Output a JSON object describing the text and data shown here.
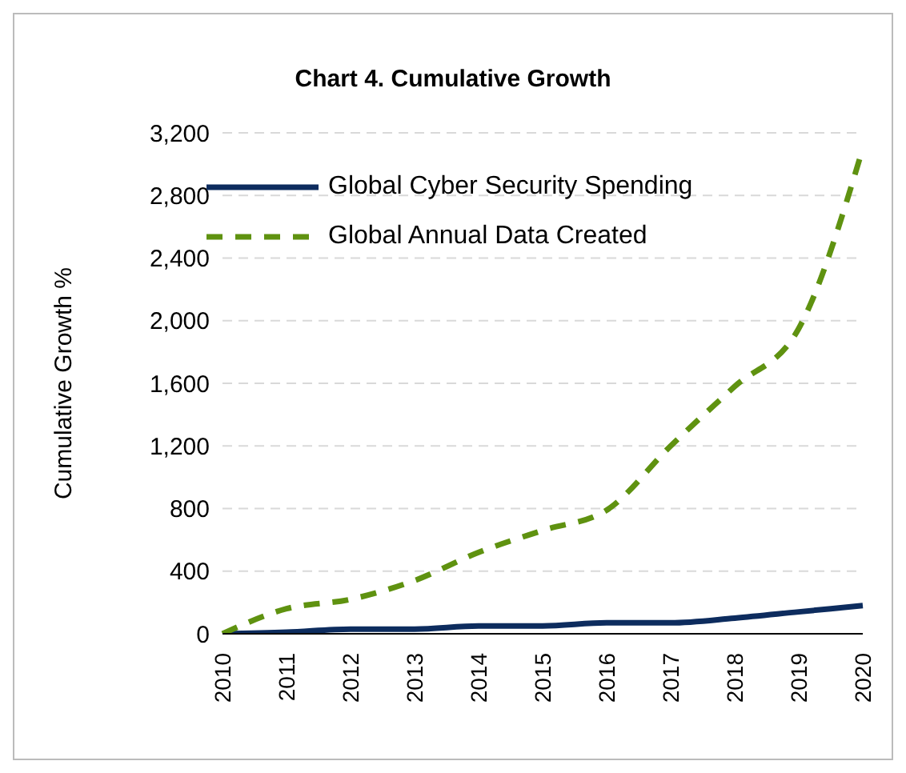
{
  "chart_data": {
    "type": "line",
    "title": "Chart 4. Cumulative Growth",
    "ylabel": "Cumulative Growth %",
    "categories": [
      "2010",
      "2011",
      "2012",
      "2013",
      "2014",
      "2015",
      "2016",
      "2017",
      "2018",
      "2019",
      "2020"
    ],
    "series": [
      {
        "name": "Global Cyber Security Spending",
        "color": "#0d2c5e",
        "values": [
          0,
          10,
          30,
          30,
          50,
          50,
          70,
          70,
          100,
          140,
          180
        ],
        "line_style": "solid"
      },
      {
        "name": "Global Annual Data Created",
        "color": "#5f9210",
        "values": [
          0,
          160,
          220,
          340,
          520,
          660,
          790,
          1200,
          1580,
          1950,
          3100
        ],
        "line_style": "dashed"
      }
    ],
    "ylim": [
      0,
      3200
    ],
    "yticks": [
      0,
      400,
      800,
      {
        "value": 1200,
        "label": "1,200"
      },
      {
        "value": 1600,
        "label": "1,600"
      },
      {
        "value": 2000,
        "label": "2,000"
      },
      {
        "value": 2400,
        "label": "2,400"
      },
      {
        "value": 2800,
        "label": "2,800"
      },
      {
        "value": 3200,
        "label": "3,200"
      }
    ],
    "grid": "y",
    "legend": "top left",
    "marker": "none"
  }
}
